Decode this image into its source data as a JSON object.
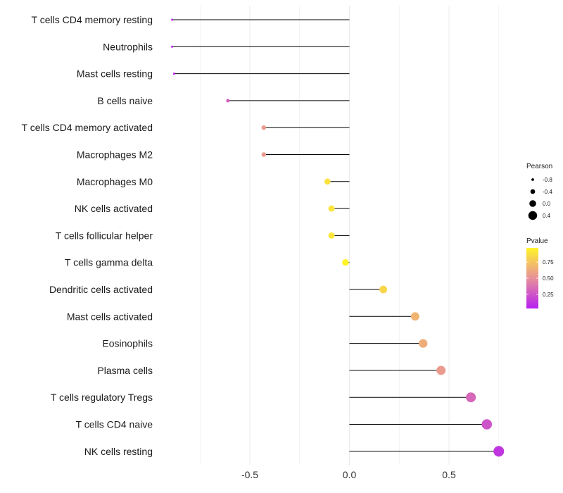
{
  "chart_data": {
    "type": "lollipop",
    "title": "",
    "xlabel": "",
    "ylabel": "",
    "xlim": [
      -1.0,
      0.8
    ],
    "xticks": [
      -0.5,
      0.0,
      0.5
    ],
    "xtick_labels": [
      "-0.5",
      "0.0",
      "0.5"
    ],
    "grid": "vertical",
    "points": [
      {
        "category": "T cells CD4 memory resting",
        "pearson": -0.89,
        "pvalue": 0.06
      },
      {
        "category": "Neutrophils",
        "pearson": -0.89,
        "pvalue": 0.06
      },
      {
        "category": "Mast cells resting",
        "pearson": -0.88,
        "pvalue": 0.07
      },
      {
        "category": "B cells naive",
        "pearson": -0.61,
        "pvalue": 0.3
      },
      {
        "category": "T cells CD4 memory activated",
        "pearson": -0.43,
        "pvalue": 0.55
      },
      {
        "category": "Macrophages M2",
        "pearson": -0.43,
        "pvalue": 0.55
      },
      {
        "category": "Macrophages M0",
        "pearson": -0.11,
        "pvalue": 0.88
      },
      {
        "category": "NK cells activated",
        "pearson": -0.09,
        "pvalue": 0.9
      },
      {
        "category": "T cells follicular helper",
        "pearson": -0.09,
        "pvalue": 0.9
      },
      {
        "category": "T cells gamma delta",
        "pearson": -0.02,
        "pvalue": 0.97
      },
      {
        "category": "Dendritic cells activated",
        "pearson": 0.17,
        "pvalue": 0.83
      },
      {
        "category": "Mast cells activated",
        "pearson": 0.33,
        "pvalue": 0.67
      },
      {
        "category": "Eosinophils",
        "pearson": 0.37,
        "pvalue": 0.63
      },
      {
        "category": "Plasma cells",
        "pearson": 0.46,
        "pvalue": 0.55
      },
      {
        "category": "T cells regulatory  Tregs ",
        "pearson": 0.61,
        "pvalue": 0.33
      },
      {
        "category": "T cells CD4 naive",
        "pearson": 0.69,
        "pvalue": 0.25
      },
      {
        "category": "NK cells resting",
        "pearson": 0.75,
        "pvalue": 0.12
      }
    ],
    "size_legend": {
      "title": "Pearson",
      "values": [
        -0.8,
        -0.4,
        0.0,
        0.4
      ],
      "labels": [
        "-0.8",
        "-0.4",
        "0.0",
        "0.4"
      ]
    },
    "color_legend": {
      "title": "Pvalue",
      "range": [
        0.03,
        0.97
      ],
      "ticks": [
        0.25,
        0.5,
        0.75
      ],
      "tick_labels": [
        "0.25",
        "0.50",
        "0.75"
      ],
      "colors": [
        "#b61ff0",
        "#e8909a",
        "#fff42a"
      ]
    }
  }
}
